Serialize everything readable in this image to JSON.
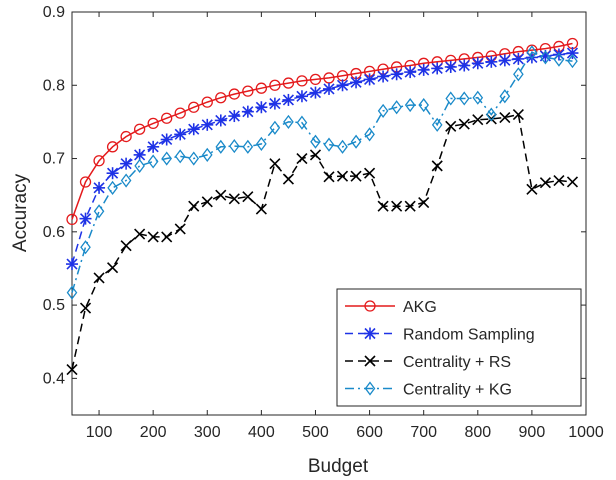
{
  "chart_data": {
    "type": "line",
    "title": "",
    "xlabel": "Budget",
    "ylabel": "Accuracy",
    "xlim": [
      50,
      1000
    ],
    "ylim": [
      0.35,
      0.9
    ],
    "xticks": [
      100,
      200,
      300,
      400,
      500,
      600,
      700,
      800,
      900,
      1000
    ],
    "xtick_labels": [
      "100",
      "200",
      "300",
      "400",
      "500",
      "600",
      "700",
      "800",
      "900",
      "1000"
    ],
    "yticks": [
      0.4,
      0.5,
      0.6,
      0.7,
      0.8,
      0.9
    ],
    "ytick_labels": [
      "0.4",
      "0.5",
      "0.6",
      "0.7",
      "0.8",
      "0.9"
    ],
    "grid": false,
    "legend_position": "bottom-right",
    "x": [
      50,
      75,
      100,
      125,
      150,
      175,
      200,
      225,
      250,
      275,
      300,
      325,
      350,
      375,
      400,
      425,
      450,
      475,
      500,
      525,
      550,
      575,
      600,
      625,
      650,
      675,
      700,
      725,
      750,
      775,
      800,
      825,
      850,
      875,
      900,
      925,
      950,
      975
    ],
    "series": [
      {
        "name": "AKG",
        "color": "#e41a1c",
        "dash": "",
        "marker": "circle",
        "values": [
          0.617,
          0.668,
          0.697,
          0.716,
          0.73,
          0.74,
          0.748,
          0.755,
          0.762,
          0.77,
          0.777,
          0.783,
          0.788,
          0.792,
          0.796,
          0.8,
          0.803,
          0.806,
          0.808,
          0.81,
          0.813,
          0.816,
          0.819,
          0.822,
          0.825,
          0.827,
          0.83,
          0.832,
          0.834,
          0.836,
          0.838,
          0.84,
          0.843,
          0.846,
          0.848,
          0.85,
          0.853,
          0.857
        ]
      },
      {
        "name": "Random Sampling",
        "color": "#1e32e6",
        "dash": "8,5",
        "marker": "asterisk",
        "values": [
          0.556,
          0.618,
          0.66,
          0.68,
          0.693,
          0.705,
          0.716,
          0.726,
          0.733,
          0.74,
          0.746,
          0.752,
          0.758,
          0.764,
          0.77,
          0.775,
          0.78,
          0.785,
          0.79,
          0.795,
          0.8,
          0.804,
          0.808,
          0.812,
          0.815,
          0.818,
          0.821,
          0.823,
          0.825,
          0.827,
          0.83,
          0.832,
          0.834,
          0.836,
          0.838,
          0.84,
          0.842,
          0.844
        ]
      },
      {
        "name": "Centrality + RS",
        "color": "#000000",
        "dash": "8,5",
        "marker": "x",
        "values": [
          0.412,
          0.496,
          0.537,
          0.551,
          0.581,
          0.597,
          0.593,
          0.593,
          0.604,
          0.635,
          0.641,
          0.65,
          0.645,
          0.648,
          0.631,
          0.693,
          0.672,
          0.7,
          0.705,
          0.675,
          0.676,
          0.676,
          0.68,
          0.635,
          0.635,
          0.635,
          0.64,
          0.69,
          0.744,
          0.747,
          0.753,
          0.754,
          0.756,
          0.76,
          0.658,
          0.667,
          0.67,
          0.668
        ]
      },
      {
        "name": "Centrality + KG",
        "color": "#1a8ac9",
        "dash": "9,4,2,4",
        "marker": "diamond",
        "values": [
          0.517,
          0.579,
          0.628,
          0.66,
          0.67,
          0.69,
          0.696,
          0.7,
          0.703,
          0.7,
          0.705,
          0.716,
          0.717,
          0.716,
          0.72,
          0.742,
          0.75,
          0.749,
          0.723,
          0.719,
          0.716,
          0.723,
          0.733,
          0.765,
          0.77,
          0.773,
          0.773,
          0.746,
          0.782,
          0.782,
          0.783,
          0.76,
          0.785,
          0.815,
          0.845,
          0.838,
          0.835,
          0.833
        ]
      }
    ]
  }
}
